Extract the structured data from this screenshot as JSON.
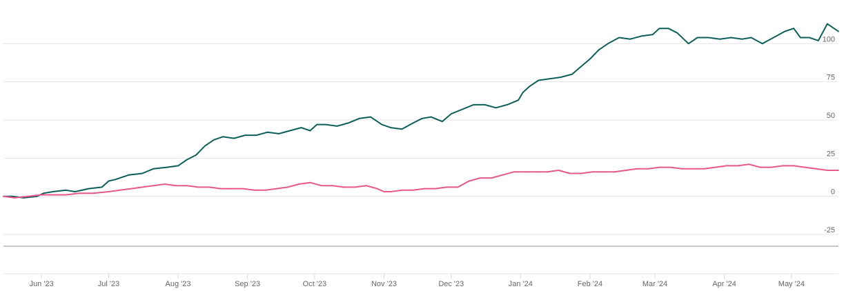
{
  "chart_data": {
    "type": "line",
    "title": "",
    "xlabel": "",
    "ylabel": "",
    "ylim": [
      -25,
      125
    ],
    "y_ticks": [
      100,
      75,
      50,
      25,
      0,
      -25
    ],
    "y_tick_labels": [
      "100",
      "75",
      "50",
      "25",
      "0",
      "-25"
    ],
    "y_axis_position": "right",
    "grid": true,
    "x_range": [
      "2023-05-15",
      "2024-05-22"
    ],
    "x_ticks": [
      {
        "date": "2023-06-01",
        "label": "Jun '23"
      },
      {
        "date": "2023-07-01",
        "label": "Jul '23"
      },
      {
        "date": "2023-08-01",
        "label": "Aug '23"
      },
      {
        "date": "2023-09-01",
        "label": "Sep '23"
      },
      {
        "date": "2023-10-01",
        "label": "Oct '23"
      },
      {
        "date": "2023-11-01",
        "label": "Nov '23"
      },
      {
        "date": "2023-12-01",
        "label": "Dec '23"
      },
      {
        "date": "2024-01-01",
        "label": "Jan '24"
      },
      {
        "date": "2024-02-01",
        "label": "Feb '24"
      },
      {
        "date": "2024-03-01",
        "label": "Mar '24"
      },
      {
        "date": "2024-04-01",
        "label": "Apr '24"
      },
      {
        "date": "2024-05-01",
        "label": "May '24"
      }
    ],
    "series": [
      {
        "color": "#0b5f5a",
        "points": [
          [
            "2023-05-15",
            0
          ],
          [
            "2023-05-19",
            0
          ],
          [
            "2023-05-24",
            -1
          ],
          [
            "2023-05-30",
            0
          ],
          [
            "2023-06-02",
            2
          ],
          [
            "2023-06-06",
            3
          ],
          [
            "2023-06-12",
            4
          ],
          [
            "2023-06-16",
            3
          ],
          [
            "2023-06-22",
            5
          ],
          [
            "2023-06-28",
            6
          ],
          [
            "2023-07-01",
            10
          ],
          [
            "2023-07-04",
            11
          ],
          [
            "2023-07-10",
            14
          ],
          [
            "2023-07-16",
            15
          ],
          [
            "2023-07-21",
            18
          ],
          [
            "2023-07-27",
            19
          ],
          [
            "2023-08-01",
            20
          ],
          [
            "2023-08-05",
            24
          ],
          [
            "2023-08-09",
            27
          ],
          [
            "2023-08-13",
            33
          ],
          [
            "2023-08-17",
            37
          ],
          [
            "2023-08-21",
            39
          ],
          [
            "2023-08-26",
            38
          ],
          [
            "2023-08-31",
            40
          ],
          [
            "2023-09-05",
            40
          ],
          [
            "2023-09-10",
            42
          ],
          [
            "2023-09-15",
            41
          ],
          [
            "2023-09-20",
            43
          ],
          [
            "2023-09-25",
            45
          ],
          [
            "2023-09-29",
            43
          ],
          [
            "2023-10-02",
            47
          ],
          [
            "2023-10-06",
            47
          ],
          [
            "2023-10-11",
            46
          ],
          [
            "2023-10-16",
            48
          ],
          [
            "2023-10-21",
            51
          ],
          [
            "2023-10-26",
            52
          ],
          [
            "2023-10-31",
            47
          ],
          [
            "2023-11-04",
            45
          ],
          [
            "2023-11-09",
            44
          ],
          [
            "2023-11-14",
            48
          ],
          [
            "2023-11-18",
            51
          ],
          [
            "2023-11-22",
            52
          ],
          [
            "2023-11-27",
            49
          ],
          [
            "2023-12-01",
            54
          ],
          [
            "2023-12-06",
            57
          ],
          [
            "2023-12-11",
            60
          ],
          [
            "2023-12-16",
            60
          ],
          [
            "2023-12-21",
            58
          ],
          [
            "2023-12-26",
            60
          ],
          [
            "2023-12-31",
            63
          ],
          [
            "2024-01-02",
            68
          ],
          [
            "2024-01-05",
            72
          ],
          [
            "2024-01-09",
            76
          ],
          [
            "2024-01-14",
            77
          ],
          [
            "2024-01-19",
            78
          ],
          [
            "2024-01-24",
            80
          ],
          [
            "2024-01-28",
            85
          ],
          [
            "2024-02-01",
            90
          ],
          [
            "2024-02-05",
            96
          ],
          [
            "2024-02-09",
            100
          ],
          [
            "2024-02-14",
            104
          ],
          [
            "2024-02-19",
            103
          ],
          [
            "2024-02-24",
            105
          ],
          [
            "2024-02-29",
            106
          ],
          [
            "2024-03-03",
            110
          ],
          [
            "2024-03-07",
            110
          ],
          [
            "2024-03-11",
            107
          ],
          [
            "2024-03-16",
            100
          ],
          [
            "2024-03-20",
            104
          ],
          [
            "2024-03-25",
            104
          ],
          [
            "2024-03-30",
            103
          ],
          [
            "2024-04-04",
            104
          ],
          [
            "2024-04-09",
            103
          ],
          [
            "2024-04-13",
            104
          ],
          [
            "2024-04-18",
            100
          ],
          [
            "2024-04-23",
            104
          ],
          [
            "2024-04-28",
            108
          ],
          [
            "2024-05-02",
            110
          ],
          [
            "2024-05-05",
            104
          ],
          [
            "2024-05-09",
            104
          ],
          [
            "2024-05-13",
            102
          ],
          [
            "2024-05-17",
            113
          ],
          [
            "2024-05-22",
            108
          ]
        ]
      },
      {
        "color": "#e8568a",
        "points": [
          [
            "2023-05-15",
            0
          ],
          [
            "2023-05-20",
            -1
          ],
          [
            "2023-05-26",
            0
          ],
          [
            "2023-06-01",
            1
          ],
          [
            "2023-06-06",
            1
          ],
          [
            "2023-06-12",
            1
          ],
          [
            "2023-06-18",
            2
          ],
          [
            "2023-06-24",
            2
          ],
          [
            "2023-07-01",
            3
          ],
          [
            "2023-07-06",
            4
          ],
          [
            "2023-07-11",
            5
          ],
          [
            "2023-07-16",
            6
          ],
          [
            "2023-07-21",
            7
          ],
          [
            "2023-07-26",
            8
          ],
          [
            "2023-07-31",
            7
          ],
          [
            "2023-08-05",
            7
          ],
          [
            "2023-08-10",
            6
          ],
          [
            "2023-08-15",
            6
          ],
          [
            "2023-08-20",
            5
          ],
          [
            "2023-08-25",
            5
          ],
          [
            "2023-08-30",
            5
          ],
          [
            "2023-09-04",
            4
          ],
          [
            "2023-09-09",
            4
          ],
          [
            "2023-09-14",
            5
          ],
          [
            "2023-09-19",
            6
          ],
          [
            "2023-09-24",
            8
          ],
          [
            "2023-09-29",
            9
          ],
          [
            "2023-10-04",
            7
          ],
          [
            "2023-10-09",
            7
          ],
          [
            "2023-10-14",
            6
          ],
          [
            "2023-10-19",
            6
          ],
          [
            "2023-10-24",
            7
          ],
          [
            "2023-10-29",
            5
          ],
          [
            "2023-11-01",
            3
          ],
          [
            "2023-11-04",
            3
          ],
          [
            "2023-11-09",
            4
          ],
          [
            "2023-11-14",
            4
          ],
          [
            "2023-11-19",
            5
          ],
          [
            "2023-11-24",
            5
          ],
          [
            "2023-11-29",
            6
          ],
          [
            "2023-12-04",
            6
          ],
          [
            "2023-12-09",
            10
          ],
          [
            "2023-12-14",
            12
          ],
          [
            "2023-12-19",
            12
          ],
          [
            "2023-12-24",
            14
          ],
          [
            "2023-12-29",
            16
          ],
          [
            "2024-01-03",
            16
          ],
          [
            "2024-01-08",
            16
          ],
          [
            "2024-01-13",
            16
          ],
          [
            "2024-01-18",
            17
          ],
          [
            "2024-01-23",
            15
          ],
          [
            "2024-01-28",
            15
          ],
          [
            "2024-02-02",
            16
          ],
          [
            "2024-02-07",
            16
          ],
          [
            "2024-02-12",
            16
          ],
          [
            "2024-02-17",
            17
          ],
          [
            "2024-02-22",
            18
          ],
          [
            "2024-02-27",
            18
          ],
          [
            "2024-03-03",
            19
          ],
          [
            "2024-03-08",
            19
          ],
          [
            "2024-03-13",
            18
          ],
          [
            "2024-03-18",
            18
          ],
          [
            "2024-03-23",
            18
          ],
          [
            "2024-03-28",
            19
          ],
          [
            "2024-04-02",
            20
          ],
          [
            "2024-04-07",
            20
          ],
          [
            "2024-04-12",
            21
          ],
          [
            "2024-04-17",
            19
          ],
          [
            "2024-04-22",
            19
          ],
          [
            "2024-04-27",
            20
          ],
          [
            "2024-05-02",
            20
          ],
          [
            "2024-05-07",
            19
          ],
          [
            "2024-05-12",
            18
          ],
          [
            "2024-05-17",
            17
          ],
          [
            "2024-05-22",
            17
          ]
        ]
      }
    ]
  }
}
